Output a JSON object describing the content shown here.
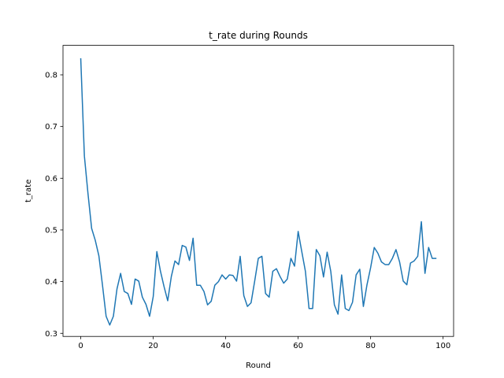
{
  "chart_data": {
    "type": "line",
    "title": "t_rate during Rounds",
    "xlabel": "Round",
    "ylabel": "t_rate",
    "xlim": [
      -4.9,
      102.9
    ],
    "ylim": [
      0.294,
      0.857
    ],
    "xticks": [
      0,
      20,
      40,
      60,
      80,
      100
    ],
    "yticks": [
      0.3,
      0.4,
      0.5,
      0.6,
      0.7,
      0.8
    ],
    "grid": false,
    "legend": "none",
    "series": [
      {
        "color": "#1f77b4",
        "x": [
          0,
          1,
          2,
          3,
          4,
          5,
          6,
          7,
          8,
          9,
          10,
          11,
          12,
          13,
          14,
          15,
          16,
          17,
          18,
          19,
          20,
          21,
          22,
          23,
          24,
          25,
          26,
          27,
          28,
          29,
          30,
          31,
          32,
          33,
          34,
          35,
          36,
          37,
          38,
          39,
          40,
          41,
          42,
          43,
          44,
          45,
          46,
          47,
          48,
          49,
          50,
          51,
          52,
          53,
          54,
          55,
          56,
          57,
          58,
          59,
          60,
          61,
          62,
          63,
          64,
          65,
          66,
          67,
          68,
          69,
          70,
          71,
          72,
          73,
          74,
          75,
          76,
          77,
          78,
          79,
          80,
          81,
          82,
          83,
          84,
          85,
          86,
          87,
          88,
          89,
          90,
          91,
          92,
          93,
          94,
          95,
          96,
          97,
          98
        ],
        "y": [
          0.831,
          0.643,
          0.57,
          0.503,
          0.48,
          0.45,
          0.393,
          0.333,
          0.316,
          0.333,
          0.386,
          0.416,
          0.381,
          0.377,
          0.356,
          0.405,
          0.401,
          0.37,
          0.356,
          0.333,
          0.371,
          0.458,
          0.42,
          0.39,
          0.363,
          0.41,
          0.44,
          0.433,
          0.47,
          0.467,
          0.441,
          0.484,
          0.393,
          0.393,
          0.381,
          0.355,
          0.362,
          0.393,
          0.4,
          0.413,
          0.405,
          0.413,
          0.412,
          0.401,
          0.449,
          0.373,
          0.352,
          0.359,
          0.401,
          0.445,
          0.449,
          0.377,
          0.37,
          0.42,
          0.425,
          0.41,
          0.397,
          0.405,
          0.445,
          0.43,
          0.497,
          0.458,
          0.42,
          0.348,
          0.348,
          0.462,
          0.45,
          0.409,
          0.457,
          0.42,
          0.355,
          0.337,
          0.413,
          0.348,
          0.344,
          0.36,
          0.413,
          0.424,
          0.352,
          0.394,
          0.427,
          0.466,
          0.455,
          0.438,
          0.433,
          0.433,
          0.445,
          0.462,
          0.438,
          0.401,
          0.394,
          0.436,
          0.44,
          0.449,
          0.516,
          0.416,
          0.466,
          0.445,
          0.445
        ]
      }
    ]
  }
}
